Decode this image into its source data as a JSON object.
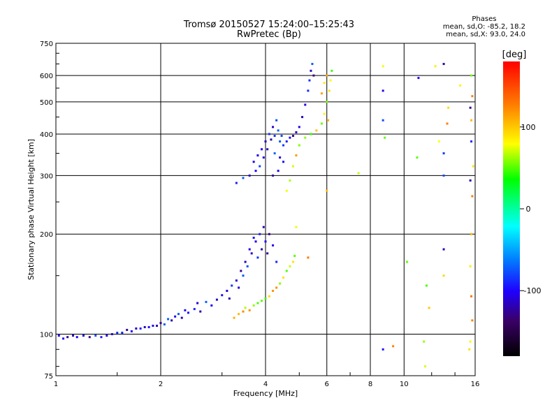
{
  "header": {
    "title": "Tromsø 20150527 15:24:00–15:25:43",
    "subtitle": "RwPretec (Bp)"
  },
  "phases_box": {
    "heading": "Phases",
    "line_o": "mean, sd,O: -85.2, 18.2",
    "line_x": "mean, sd,X:  93.0, 24.0"
  },
  "colorbar": {
    "label": "[deg]",
    "ticks": [
      "100",
      "0",
      "-100"
    ],
    "tick_values": [
      100,
      0,
      -100
    ],
    "range": [
      -180,
      180
    ]
  },
  "chart_data": {
    "type": "scatter",
    "title": "Tromsø 20150527 15:24:00–15:25:43",
    "subtitle": "RwPretec (Bp)",
    "xlabel": "Frequency [MHz]",
    "ylabel": "Stationary phase Virtual Height [km]",
    "x_scale": "log",
    "y_scale": "log",
    "xlim": [
      1,
      16
    ],
    "ylim": [
      75,
      750
    ],
    "x_ticks": [
      1,
      2,
      4,
      6,
      8,
      10,
      16
    ],
    "x_tick_labels": [
      "1",
      "2",
      "4",
      "6",
      "8",
      "10",
      "16"
    ],
    "y_ticks": [
      75,
      100,
      200,
      300,
      400,
      500,
      600,
      750
    ],
    "y_tick_labels": [
      "75",
      "100",
      "200",
      "300",
      "400",
      "500",
      "600",
      "750"
    ],
    "grid": true,
    "color_encodes": "phase [deg]",
    "series": [
      {
        "name": "O",
        "points": [
          [
            1.02,
            99
          ],
          [
            1.05,
            97
          ],
          [
            1.08,
            98
          ],
          [
            1.12,
            99
          ],
          [
            1.15,
            98
          ],
          [
            1.2,
            99
          ],
          [
            1.25,
            98
          ],
          [
            1.3,
            99
          ],
          [
            1.35,
            98
          ],
          [
            1.4,
            99
          ],
          [
            1.45,
            100
          ],
          [
            1.5,
            101
          ],
          [
            1.55,
            101
          ],
          [
            1.6,
            103
          ],
          [
            1.65,
            102
          ],
          [
            1.7,
            104
          ],
          [
            1.75,
            104
          ],
          [
            1.8,
            105
          ],
          [
            1.85,
            105
          ],
          [
            1.9,
            106
          ],
          [
            1.95,
            106
          ],
          [
            2.0,
            108
          ],
          [
            2.05,
            107
          ],
          [
            2.1,
            111
          ],
          [
            2.15,
            110
          ],
          [
            2.2,
            113
          ],
          [
            2.25,
            115
          ],
          [
            2.3,
            112
          ],
          [
            2.35,
            118
          ],
          [
            2.4,
            116
          ],
          [
            2.5,
            119
          ],
          [
            2.55,
            124
          ],
          [
            2.6,
            117
          ],
          [
            2.7,
            125
          ],
          [
            2.8,
            122
          ],
          [
            2.9,
            127
          ],
          [
            3.0,
            131
          ],
          [
            3.1,
            135
          ],
          [
            3.15,
            128
          ],
          [
            3.2,
            140
          ],
          [
            3.3,
            145
          ],
          [
            3.35,
            138
          ],
          [
            3.4,
            155
          ],
          [
            3.45,
            150
          ],
          [
            3.5,
            165
          ],
          [
            3.55,
            160
          ],
          [
            3.6,
            180
          ],
          [
            3.65,
            175
          ],
          [
            3.7,
            195
          ],
          [
            3.75,
            190
          ],
          [
            3.8,
            170
          ],
          [
            3.85,
            200
          ],
          [
            3.9,
            180
          ],
          [
            3.95,
            210
          ],
          [
            4.0,
            190
          ],
          [
            4.05,
            175
          ],
          [
            4.1,
            200
          ],
          [
            4.2,
            185
          ],
          [
            4.3,
            165
          ],
          [
            3.3,
            285
          ],
          [
            3.45,
            295
          ],
          [
            3.6,
            300
          ],
          [
            3.7,
            330
          ],
          [
            3.75,
            310
          ],
          [
            3.8,
            345
          ],
          [
            3.85,
            320
          ],
          [
            3.9,
            360
          ],
          [
            3.95,
            340
          ],
          [
            4.0,
            380
          ],
          [
            4.05,
            360
          ],
          [
            4.1,
            400
          ],
          [
            4.15,
            385
          ],
          [
            4.2,
            420
          ],
          [
            4.25,
            395
          ],
          [
            4.3,
            440
          ],
          [
            4.35,
            410
          ],
          [
            4.4,
            380
          ],
          [
            4.45,
            395
          ],
          [
            4.5,
            370
          ],
          [
            4.6,
            380
          ],
          [
            4.7,
            390
          ],
          [
            4.8,
            395
          ],
          [
            4.9,
            405
          ],
          [
            5.0,
            420
          ],
          [
            5.1,
            450
          ],
          [
            5.2,
            490
          ],
          [
            5.3,
            540
          ],
          [
            5.35,
            580
          ],
          [
            5.4,
            620
          ],
          [
            5.45,
            650
          ],
          [
            5.5,
            600
          ],
          [
            4.4,
            340
          ],
          [
            4.5,
            330
          ],
          [
            4.35,
            310
          ],
          [
            4.2,
            300
          ],
          [
            4.25,
            350
          ],
          [
            8.7,
            540
          ],
          [
            8.7,
            440
          ],
          [
            8.7,
            90
          ],
          [
            11.0,
            590
          ],
          [
            13.0,
            650
          ],
          [
            13.0,
            350
          ],
          [
            13.0,
            300
          ],
          [
            13.0,
            180
          ],
          [
            15.5,
            480
          ],
          [
            15.5,
            290
          ],
          [
            15.6,
            380
          ]
        ]
      },
      {
        "name": "X",
        "points": [
          [
            3.25,
            112
          ],
          [
            3.35,
            115
          ],
          [
            3.45,
            117
          ],
          [
            3.5,
            120
          ],
          [
            3.6,
            118
          ],
          [
            3.7,
            122
          ],
          [
            3.8,
            124
          ],
          [
            3.9,
            126
          ],
          [
            4.0,
            128
          ],
          [
            4.1,
            130
          ],
          [
            4.2,
            135
          ],
          [
            4.3,
            138
          ],
          [
            4.4,
            142
          ],
          [
            4.5,
            148
          ],
          [
            4.6,
            155
          ],
          [
            4.7,
            160
          ],
          [
            4.8,
            165
          ],
          [
            4.85,
            172
          ],
          [
            4.6,
            270
          ],
          [
            4.7,
            290
          ],
          [
            4.8,
            320
          ],
          [
            4.9,
            345
          ],
          [
            5.0,
            370
          ],
          [
            5.2,
            390
          ],
          [
            5.4,
            400
          ],
          [
            5.6,
            410
          ],
          [
            5.8,
            430
          ],
          [
            5.9,
            460
          ],
          [
            6.0,
            500
          ],
          [
            6.1,
            540
          ],
          [
            6.15,
            580
          ],
          [
            6.2,
            620
          ],
          [
            5.8,
            530
          ],
          [
            5.9,
            570
          ],
          [
            6.0,
            600
          ],
          [
            4.9,
            210
          ],
          [
            5.3,
            170
          ],
          [
            6.05,
            440
          ],
          [
            6.0,
            270
          ],
          [
            7.4,
            305
          ],
          [
            8.7,
            640
          ],
          [
            8.8,
            390
          ],
          [
            9.3,
            92
          ],
          [
            10.2,
            165
          ],
          [
            10.9,
            340
          ],
          [
            11.4,
            95
          ],
          [
            11.5,
            80
          ],
          [
            11.6,
            140
          ],
          [
            11.8,
            120
          ],
          [
            12.3,
            640
          ],
          [
            12.6,
            380
          ],
          [
            13.0,
            150
          ],
          [
            13.3,
            430
          ],
          [
            13.4,
            480
          ],
          [
            14.5,
            560
          ],
          [
            15.6,
            600
          ],
          [
            15.7,
            520
          ],
          [
            15.6,
            440
          ],
          [
            15.8,
            320
          ],
          [
            15.7,
            260
          ],
          [
            15.6,
            200
          ],
          [
            15.5,
            160
          ],
          [
            15.6,
            130
          ],
          [
            15.7,
            110
          ],
          [
            15.5,
            95
          ],
          [
            15.4,
            90
          ]
        ]
      }
    ]
  }
}
